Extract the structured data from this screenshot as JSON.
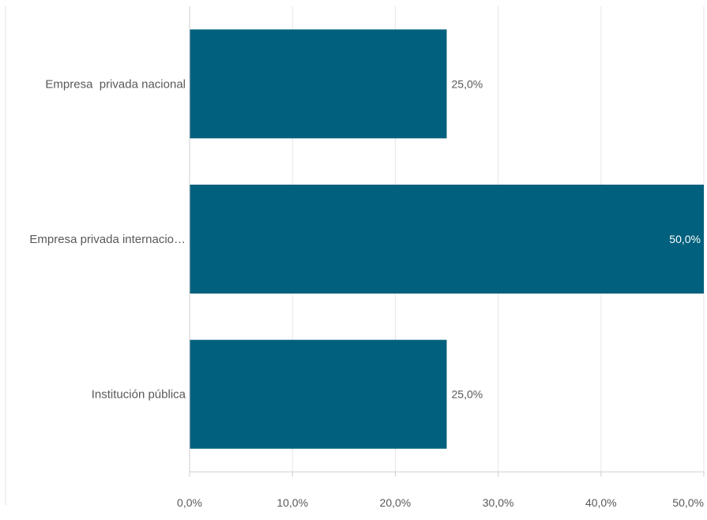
{
  "chart_data": {
    "type": "bar",
    "orientation": "horizontal",
    "categories": [
      "Empresa  privada nacional",
      "Empresa privada internacio…",
      "Institución pública"
    ],
    "values": [
      25.0,
      50.0,
      25.0
    ],
    "value_labels": [
      "25,0%",
      "50,0%",
      "25,0%"
    ],
    "xlim": [
      0,
      50
    ],
    "x_ticks": [
      0,
      10,
      20,
      30,
      40,
      50
    ],
    "x_tick_labels": [
      "0,0%",
      "10,0%",
      "20,0%",
      "30,0%",
      "40,0%",
      "50,0%"
    ],
    "title": "",
    "xlabel": "",
    "ylabel": "",
    "grid": true,
    "legend": "none",
    "colors": {
      "bar": "#00607d",
      "grid": "#e6e6e6",
      "axis": "#cfcfcf",
      "text": "#595959",
      "inside_label": "#ffffff"
    }
  }
}
